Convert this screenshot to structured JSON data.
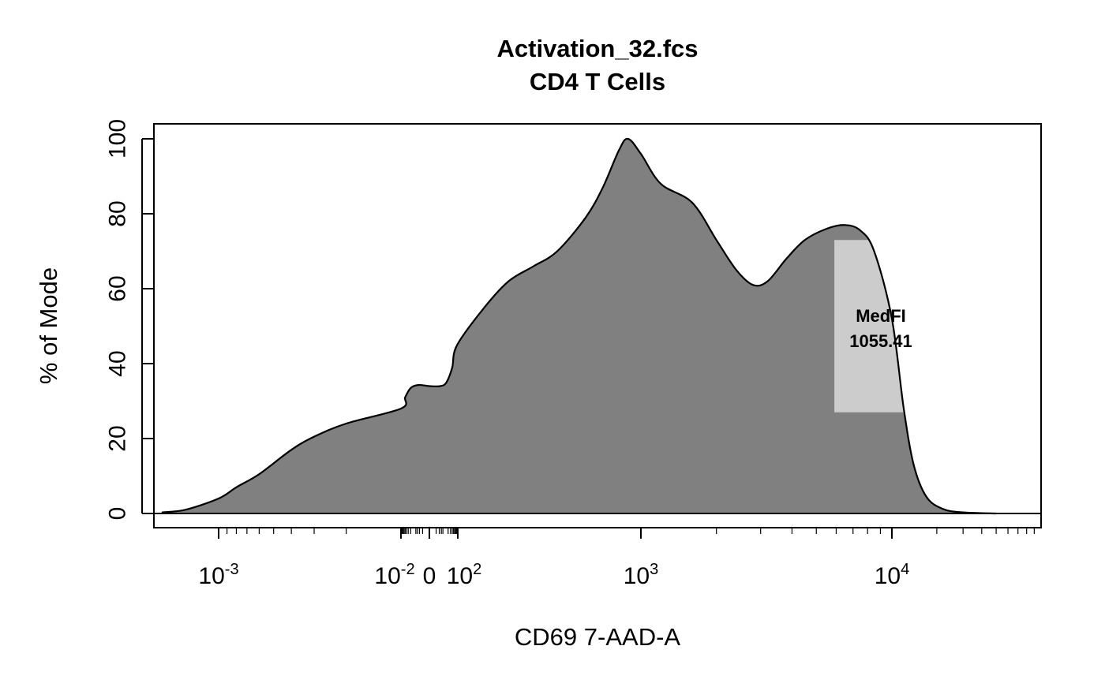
{
  "chart_data": {
    "type": "area",
    "title": "Activation_32.fcs",
    "subtitle": "CD4 T Cells",
    "xlabel": "CD69 7-AAD-A",
    "ylabel": "% of Mode",
    "y_scale": "linear",
    "ylim": [
      0,
      100
    ],
    "y_ticks": [
      "0",
      "20",
      "40",
      "60",
      "80",
      "100"
    ],
    "x_scale": "biexponential",
    "x_tick_labels": [
      {
        "base": "10",
        "exp": "-3"
      },
      {
        "base": "10",
        "exp": "-2"
      },
      {
        "base": "0",
        "exp": ""
      },
      {
        "base": "10",
        "exp": "2"
      },
      {
        "base": "10",
        "exp": "3"
      },
      {
        "base": "10",
        "exp": "4"
      }
    ],
    "series": [
      {
        "fill": "#808080",
        "stroke": "#000000",
        "points": [
          [
            -2000,
            0.3
          ],
          [
            -1500,
            1.0
          ],
          [
            -1000,
            4.0
          ],
          [
            -800,
            7.0
          ],
          [
            -600,
            10.5
          ],
          [
            -400,
            17.0
          ],
          [
            -300,
            20.5
          ],
          [
            -200,
            24.0
          ],
          [
            -100,
            28.0
          ],
          [
            -50,
            31.0
          ],
          [
            -20,
            33.5
          ],
          [
            -5,
            34.3
          ],
          [
            0,
            34.0
          ],
          [
            5,
            34.0
          ],
          [
            15,
            35.0
          ],
          [
            40,
            39.0
          ],
          [
            90,
            45.0
          ],
          [
            140,
            55.0
          ],
          [
            190,
            62.0
          ],
          [
            260,
            66.0
          ],
          [
            350,
            70.0
          ],
          [
            500,
            79.0
          ],
          [
            620,
            87.0
          ],
          [
            760,
            97.0
          ],
          [
            850,
            100.0
          ],
          [
            1000,
            96.0
          ],
          [
            1200,
            88.0
          ],
          [
            1600,
            83.0
          ],
          [
            2000,
            73.0
          ],
          [
            2400,
            65.0
          ],
          [
            2800,
            61.0
          ],
          [
            3200,
            62.0
          ],
          [
            3800,
            68.0
          ],
          [
            4500,
            73.0
          ],
          [
            5500,
            76.0
          ],
          [
            6500,
            77.0
          ],
          [
            7500,
            75.5
          ],
          [
            8500,
            70.0
          ],
          [
            10000,
            52.0
          ],
          [
            12000,
            28.0
          ],
          [
            14000,
            13.0
          ],
          [
            17000,
            4.5
          ],
          [
            22000,
            1.2
          ],
          [
            30000,
            0.3
          ],
          [
            50000,
            0.0
          ]
        ]
      }
    ],
    "gate": {
      "fill": "#cccccc",
      "x_range": [
        5900,
        12200
      ],
      "y_range": [
        27,
        73
      ],
      "label": "MedFI",
      "value": "1055.41"
    }
  }
}
